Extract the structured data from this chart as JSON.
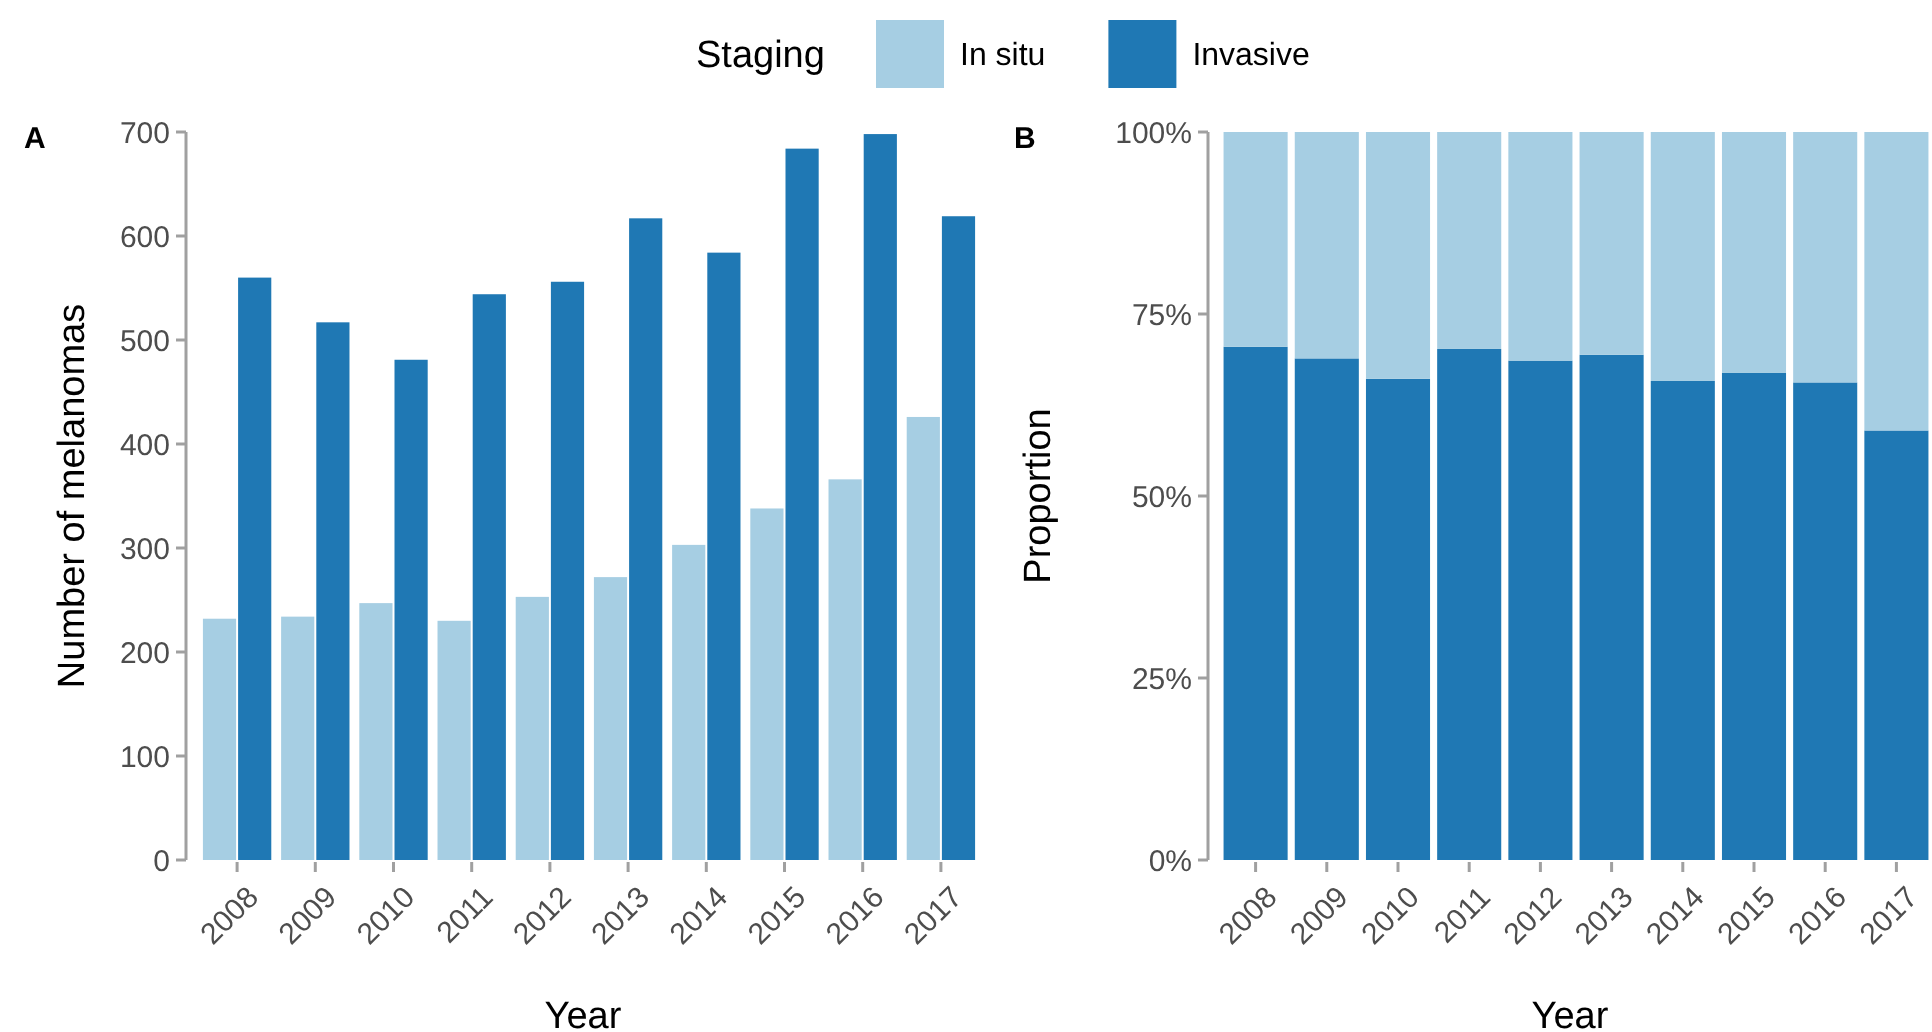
{
  "chart_data": [
    {
      "type": "bar",
      "title": "A",
      "xlabel": "Year",
      "ylabel": "Number of melanomas",
      "legend_title": "Staging",
      "legend": "top",
      "categories": [
        "2008",
        "2009",
        "2010",
        "2011",
        "2012",
        "2013",
        "2014",
        "2015",
        "2016",
        "2017"
      ],
      "series": [
        {
          "name": "In situ",
          "color": "#a6cee3",
          "values": [
            232,
            234,
            247,
            230,
            253,
            272,
            303,
            338,
            366,
            426
          ]
        },
        {
          "name": "Invasive",
          "color": "#1f78b4",
          "values": [
            560,
            517,
            481,
            544,
            556,
            617,
            584,
            684,
            698,
            619
          ]
        }
      ],
      "ylim": [
        0,
        700
      ],
      "yticks": [
        0,
        100,
        200,
        300,
        400,
        500,
        600,
        700
      ],
      "grid": false
    },
    {
      "type": "bar",
      "title": "B",
      "xlabel": "Year",
      "ylabel": "Proportion",
      "stacked": true,
      "categories": [
        "2008",
        "2009",
        "2010",
        "2011",
        "2012",
        "2013",
        "2014",
        "2015",
        "2016",
        "2017"
      ],
      "series": [
        {
          "color": "#1f78b4",
          "values": [
            70.5,
            68.9,
            66.1,
            70.2,
            68.6,
            69.4,
            65.8,
            66.9,
            65.6,
            59.0
          ]
        },
        {
          "color": "#a6cee3",
          "values": [
            29.5,
            31.1,
            33.9,
            29.8,
            31.4,
            30.6,
            34.2,
            33.1,
            34.4,
            41.0
          ]
        }
      ],
      "ylim": [
        0,
        100
      ],
      "yticks": [
        {
          "value": 0,
          "label": "0%"
        },
        {
          "value": 25,
          "label": "25%"
        },
        {
          "value": 50,
          "label": "50%"
        },
        {
          "value": 75,
          "label": "75%"
        },
        {
          "value": 100,
          "label": "100%"
        }
      ],
      "grid": false
    }
  ]
}
